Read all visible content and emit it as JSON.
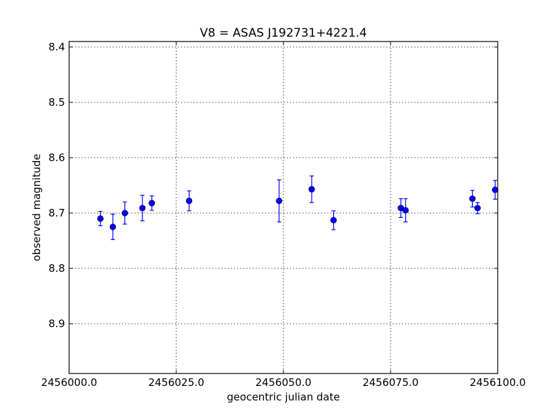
{
  "chart_data": {
    "type": "scatter",
    "title": "V8 = ASAS J192731+4221.4",
    "xlabel": "geocentric julian date",
    "ylabel": "observed magnitude",
    "xlim": [
      2456000.0,
      2456100.0
    ],
    "ylim": [
      8.99,
      8.39
    ],
    "y_inverted": true,
    "grid": true,
    "marker_color": "#0000ff",
    "x_ticks": [
      2456000.0,
      2456025.0,
      2456050.0,
      2456075.0,
      2456100.0
    ],
    "x_tick_labels": [
      "2456000.0",
      "2456025.0",
      "2456050.0",
      "2456075.0",
      "2456100.0"
    ],
    "y_ticks": [
      8.4,
      8.5,
      8.6,
      8.7,
      8.8,
      8.9
    ],
    "y_tick_labels": [
      "8.4",
      "8.5",
      "8.6",
      "8.7",
      "8.8",
      "8.9"
    ],
    "series": [
      {
        "points": [
          {
            "x": 2456007.3,
            "y": 8.71,
            "err": 0.013
          },
          {
            "x": 2456010.2,
            "y": 8.725,
            "err": 0.023
          },
          {
            "x": 2456013.0,
            "y": 8.7,
            "err": 0.02
          },
          {
            "x": 2456017.1,
            "y": 8.691,
            "err": 0.023
          },
          {
            "x": 2456019.3,
            "y": 8.682,
            "err": 0.013
          },
          {
            "x": 2456028.0,
            "y": 8.678,
            "err": 0.018
          },
          {
            "x": 2456049.0,
            "y": 8.678,
            "err": 0.038
          },
          {
            "x": 2456056.6,
            "y": 8.657,
            "err": 0.024
          },
          {
            "x": 2456061.7,
            "y": 8.713,
            "err": 0.017
          },
          {
            "x": 2456077.4,
            "y": 8.691,
            "err": 0.017
          },
          {
            "x": 2456078.5,
            "y": 8.695,
            "err": 0.021
          },
          {
            "x": 2456094.1,
            "y": 8.674,
            "err": 0.015
          },
          {
            "x": 2456095.3,
            "y": 8.691,
            "err": 0.01
          },
          {
            "x": 2456099.4,
            "y": 8.658,
            "err": 0.017
          }
        ]
      }
    ]
  }
}
